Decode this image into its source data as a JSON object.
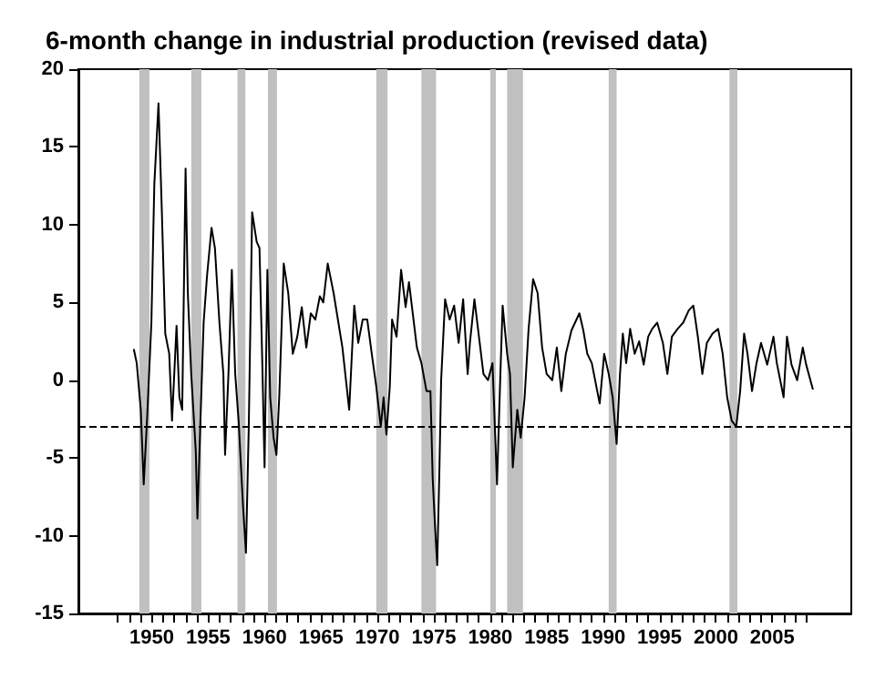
{
  "chart_data": {
    "type": "line",
    "title": "6-month change in industrial production (revised data)",
    "x": [
      1948.41,
      1948.67,
      1949.03,
      1949.29,
      1949.6,
      1949.97,
      1950.23,
      1950.6,
      1950.9,
      1951.2,
      1951.55,
      1951.8,
      1952.2,
      1952.45,
      1952.7,
      1953.0,
      1953.2,
      1953.5,
      1953.9,
      1954.05,
      1954.3,
      1954.6,
      1954.9,
      1955.3,
      1955.6,
      1956.0,
      1956.35,
      1956.5,
      1956.8,
      1957.1,
      1957.4,
      1957.7,
      1958.1,
      1958.35,
      1958.6,
      1958.9,
      1959.3,
      1959.55,
      1959.8,
      1960.0,
      1960.25,
      1960.5,
      1960.8,
      1961.05,
      1961.3,
      1961.7,
      1962.1,
      1962.5,
      1962.9,
      1963.3,
      1963.7,
      1964.1,
      1964.5,
      1964.9,
      1965.2,
      1965.6,
      1966.12,
      1966.9,
      1967.5,
      1967.95,
      1968.3,
      1968.7,
      1969.1,
      1969.5,
      1969.9,
      1970.3,
      1970.55,
      1970.8,
      1971.1,
      1971.3,
      1971.7,
      1972.1,
      1972.5,
      1972.8,
      1973.2,
      1973.5,
      1973.9,
      1974.35,
      1974.7,
      1974.9,
      1975.1,
      1975.3,
      1975.5,
      1975.65,
      1976.0,
      1976.4,
      1976.8,
      1977.2,
      1977.6,
      1978.0,
      1978.2,
      1978.6,
      1979.0,
      1979.4,
      1979.8,
      1980.2,
      1980.6,
      1980.9,
      1981.1,
      1981.5,
      1981.75,
      1982.0,
      1982.4,
      1982.7,
      1983.05,
      1983.4,
      1983.8,
      1984.2,
      1984.6,
      1985.0,
      1985.5,
      1985.9,
      1986.3,
      1986.7,
      1987.2,
      1987.9,
      1988.25,
      1988.6,
      1989.0,
      1989.7,
      1990.1,
      1990.5,
      1990.85,
      1991.2,
      1991.5,
      1991.75,
      1992.05,
      1992.4,
      1992.8,
      1993.2,
      1993.6,
      1994.0,
      1994.35,
      1994.8,
      1995.3,
      1995.7,
      1996.1,
      1996.6,
      1997.1,
      1997.6,
      1998.0,
      1998.4,
      1998.8,
      1999.2,
      1999.7,
      2000.2,
      2000.6,
      2001.0,
      2001.4,
      2001.8,
      2002.15,
      2002.5,
      2002.8,
      2003.2,
      2003.6,
      2004.0,
      2004.55,
      2005.1,
      2005.4,
      2006.0,
      2006.3,
      2006.7,
      2007.2,
      2007.7,
      2008.0,
      2008.6
    ],
    "series": [
      {
        "color": "#000000",
        "values": [
          2.0,
          1.1,
          -1.9,
          -6.7,
          -2.3,
          3.7,
          12.6,
          17.8,
          10.8,
          3.0,
          1.7,
          -2.6,
          3.5,
          -1.1,
          -1.9,
          13.6,
          5.6,
          0.4,
          -4.5,
          -8.9,
          -3.0,
          3.7,
          6.7,
          9.8,
          8.5,
          3.7,
          0.4,
          -4.8,
          0.4,
          7.1,
          0.4,
          -2.6,
          -8.2,
          -11.1,
          -3.0,
          10.8,
          8.9,
          8.5,
          1.1,
          -5.6,
          7.1,
          -1.1,
          -3.7,
          -4.8,
          -1.1,
          7.5,
          5.6,
          1.7,
          2.8,
          4.7,
          2.1,
          4.3,
          3.9,
          5.4,
          5.0,
          7.5,
          5.6,
          2.1,
          -1.9,
          4.8,
          2.4,
          3.9,
          3.9,
          1.7,
          -0.4,
          -3.0,
          -1.1,
          -3.5,
          -0.4,
          3.9,
          2.8,
          7.1,
          4.7,
          6.3,
          3.9,
          2.1,
          1.1,
          -0.7,
          -0.7,
          -6.3,
          -9.3,
          -11.9,
          -5.6,
          0.0,
          5.2,
          3.9,
          4.8,
          2.4,
          5.2,
          0.4,
          2.4,
          5.2,
          2.8,
          0.4,
          0.0,
          1.1,
          -6.7,
          0.4,
          4.8,
          1.7,
          0.4,
          -5.6,
          -1.9,
          -3.7,
          -1.1,
          3.3,
          6.5,
          5.6,
          2.1,
          0.4,
          0.0,
          2.1,
          -0.7,
          1.7,
          3.2,
          4.3,
          3.2,
          1.7,
          1.1,
          -1.5,
          1.7,
          0.4,
          -1.1,
          -4.1,
          0.4,
          3.0,
          1.1,
          3.3,
          1.7,
          2.5,
          1.0,
          2.8,
          3.3,
          3.7,
          2.4,
          0.4,
          2.8,
          3.3,
          3.7,
          4.5,
          4.8,
          2.8,
          0.4,
          2.4,
          3.0,
          3.3,
          1.7,
          -1.1,
          -2.6,
          -3.0,
          -0.7,
          3.0,
          1.7,
          -0.7,
          1.1,
          2.4,
          1.0,
          2.8,
          1.1,
          -1.1,
          2.8,
          1.0,
          0.0,
          2.1,
          1.0,
          -0.6
        ]
      }
    ],
    "xlim": [
      1943.5,
      2012
    ],
    "xticks": [
      {
        "value": 1947,
        "label": null
      },
      {
        "value": 1948,
        "label": null
      },
      {
        "value": 1949,
        "label": null
      },
      1950,
      {
        "value": 1951,
        "label": null
      },
      {
        "value": 1952,
        "label": null
      },
      {
        "value": 1953,
        "label": null
      },
      {
        "value": 1954,
        "label": null
      },
      1955,
      {
        "value": 1956,
        "label": null
      },
      {
        "value": 1957,
        "label": null
      },
      {
        "value": 1958,
        "label": null
      },
      {
        "value": 1959,
        "label": null
      },
      1960,
      {
        "value": 1961,
        "label": null
      },
      {
        "value": 1962,
        "label": null
      },
      {
        "value": 1963,
        "label": null
      },
      {
        "value": 1964,
        "label": null
      },
      1965,
      {
        "value": 1966,
        "label": null
      },
      {
        "value": 1967,
        "label": null
      },
      {
        "value": 1968,
        "label": null
      },
      {
        "value": 1969,
        "label": null
      },
      1970,
      {
        "value": 1971,
        "label": null
      },
      {
        "value": 1972,
        "label": null
      },
      {
        "value": 1973,
        "label": null
      },
      {
        "value": 1974,
        "label": null
      },
      1975,
      {
        "value": 1976,
        "label": null
      },
      {
        "value": 1977,
        "label": null
      },
      {
        "value": 1978,
        "label": null
      },
      {
        "value": 1979,
        "label": null
      },
      1980,
      {
        "value": 1981,
        "label": null
      },
      {
        "value": 1982,
        "label": null
      },
      {
        "value": 1983,
        "label": null
      },
      {
        "value": 1984,
        "label": null
      },
      1985,
      {
        "value": 1986,
        "label": null
      },
      {
        "value": 1987,
        "label": null
      },
      {
        "value": 1988,
        "label": null
      },
      {
        "value": 1989,
        "label": null
      },
      1990,
      {
        "value": 1991,
        "label": null
      },
      {
        "value": 1992,
        "label": null
      },
      {
        "value": 1993,
        "label": null
      },
      {
        "value": 1994,
        "label": null
      },
      1995,
      {
        "value": 1996,
        "label": null
      },
      {
        "value": 1997,
        "label": null
      },
      {
        "value": 1998,
        "label": null
      },
      {
        "value": 1999,
        "label": null
      },
      2000,
      {
        "value": 2001,
        "label": null
      },
      {
        "value": 2002,
        "label": null
      },
      {
        "value": 2003,
        "label": null
      },
      {
        "value": 2004,
        "label": null
      },
      2005,
      {
        "value": 2006,
        "label": null
      },
      {
        "value": 2007,
        "label": null
      },
      {
        "value": 2008,
        "label": null
      }
    ],
    "ylim": [
      -15,
      20
    ],
    "yticks": [
      -15,
      -10,
      -5,
      0,
      5,
      10,
      15,
      20
    ],
    "grid": false,
    "marker": "none",
    "line_style": "solid",
    "ref_lines": [
      {
        "axis": "y",
        "value": -3,
        "color": "#000000",
        "line_style": "dashed"
      }
    ],
    "bands": [
      {
        "axis": "x",
        "from": 1948.9,
        "to": 1949.8,
        "color": "#c0c0c0"
      },
      {
        "axis": "x",
        "from": 1953.5,
        "to": 1954.4,
        "color": "#c0c0c0"
      },
      {
        "axis": "x",
        "from": 1957.6,
        "to": 1958.3,
        "color": "#c0c0c0"
      },
      {
        "axis": "x",
        "from": 1960.3,
        "to": 1961.1,
        "color": "#c0c0c0"
      },
      {
        "axis": "x",
        "from": 1969.9,
        "to": 1970.9,
        "color": "#c0c0c0"
      },
      {
        "axis": "x",
        "from": 1973.9,
        "to": 1975.2,
        "color": "#c0c0c0"
      },
      {
        "axis": "x",
        "from": 1980.0,
        "to": 1980.5,
        "color": "#c0c0c0"
      },
      {
        "axis": "x",
        "from": 1981.5,
        "to": 1982.9,
        "color": "#c0c0c0"
      },
      {
        "axis": "x",
        "from": 1990.5,
        "to": 1991.2,
        "color": "#c0c0c0"
      },
      {
        "axis": "x",
        "from": 2001.2,
        "to": 2001.9,
        "color": "#c0c0c0"
      }
    ]
  }
}
